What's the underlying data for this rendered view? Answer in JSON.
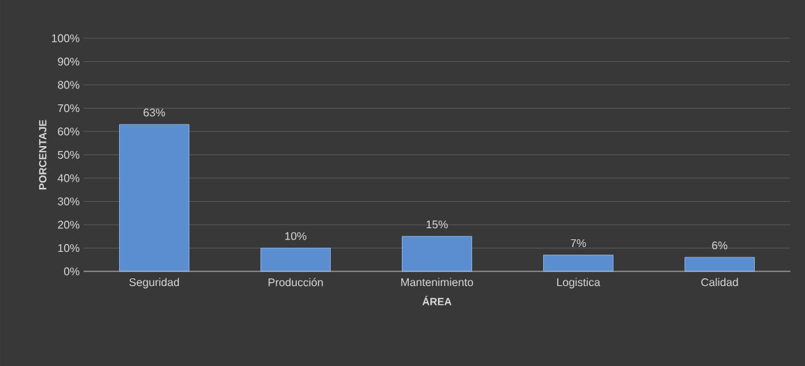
{
  "chart_data": {
    "type": "bar",
    "xlabel": "ÁREA",
    "ylabel": "PORCENTAJE",
    "categories": [
      "Seguridad",
      "Producción",
      "Mantenimiento",
      "Logistica",
      "Calidad"
    ],
    "values": [
      63,
      10,
      15,
      7,
      6
    ],
    "value_labels": [
      "63%",
      "10%",
      "15%",
      "7%",
      "6%"
    ],
    "color": "#5a8ed0",
    "ylim": [
      0,
      100
    ],
    "yticks": [
      {
        "value": 0,
        "label": "0%"
      },
      {
        "value": 10,
        "label": "10%"
      },
      {
        "value": 20,
        "label": "20%"
      },
      {
        "value": 30,
        "label": "30%"
      },
      {
        "value": 40,
        "label": "40%"
      },
      {
        "value": 50,
        "label": "50%"
      },
      {
        "value": 60,
        "label": "60%"
      },
      {
        "value": 70,
        "label": "70%"
      },
      {
        "value": 80,
        "label": "80%"
      },
      {
        "value": 90,
        "label": "90%"
      },
      {
        "value": 100,
        "label": "100%"
      }
    ],
    "grid": "y"
  }
}
